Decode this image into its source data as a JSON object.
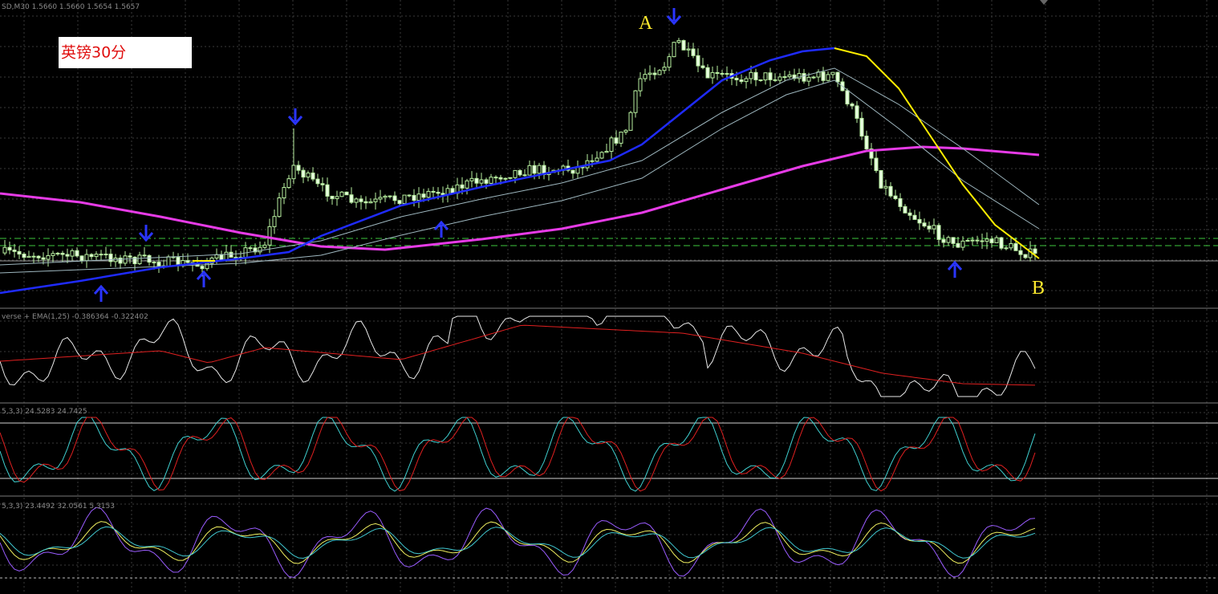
{
  "window": {
    "symbol_info": "SD,M30  1.5660 1.5660 1.5654 1.5657"
  },
  "annotation": {
    "label": "英镑30分",
    "point_a": "A",
    "point_b": "B"
  },
  "indicators": [
    {
      "info": "verse + EMA(1,25) -0.386364 -0.322402"
    },
    {
      "info": "5,3,3) 24.5283 24.7425"
    },
    {
      "info": "5,3,3) 23.4492 32.0561 5.3153"
    }
  ]
}
